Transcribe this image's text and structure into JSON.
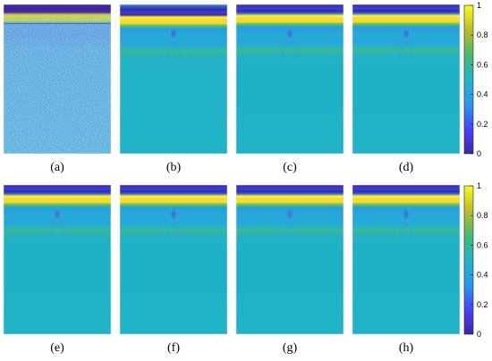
{
  "chart_data": {
    "type": "heatmap",
    "colormap": "parula",
    "colors": {
      "stops": [
        "#3e26a8",
        "#4743f8",
        "#2797eb",
        "#22b4c9",
        "#3fbc73",
        "#bbbc28",
        "#f9fb15"
      ]
    },
    "panels": [
      {
        "label": "(a)",
        "variant": "noisy"
      },
      {
        "label": "(b)",
        "variant": "smooth-top-offset"
      },
      {
        "label": "(c)",
        "variant": "smooth"
      },
      {
        "label": "(d)",
        "variant": "smooth"
      },
      {
        "label": "(e)",
        "variant": "smooth"
      },
      {
        "label": "(f)",
        "variant": "smooth"
      },
      {
        "label": "(g)",
        "variant": "smooth"
      },
      {
        "label": "(h)",
        "variant": "smooth"
      }
    ],
    "colorbars": [
      {
        "range": [
          0,
          1
        ],
        "ticks": [
          "0",
          "0.2",
          "0.4",
          "0.6",
          "0.8",
          "1"
        ]
      },
      {
        "range": [
          0,
          1
        ],
        "ticks": [
          "0",
          "0.2",
          "0.4",
          "0.6",
          "0.8",
          "1"
        ]
      }
    ]
  }
}
